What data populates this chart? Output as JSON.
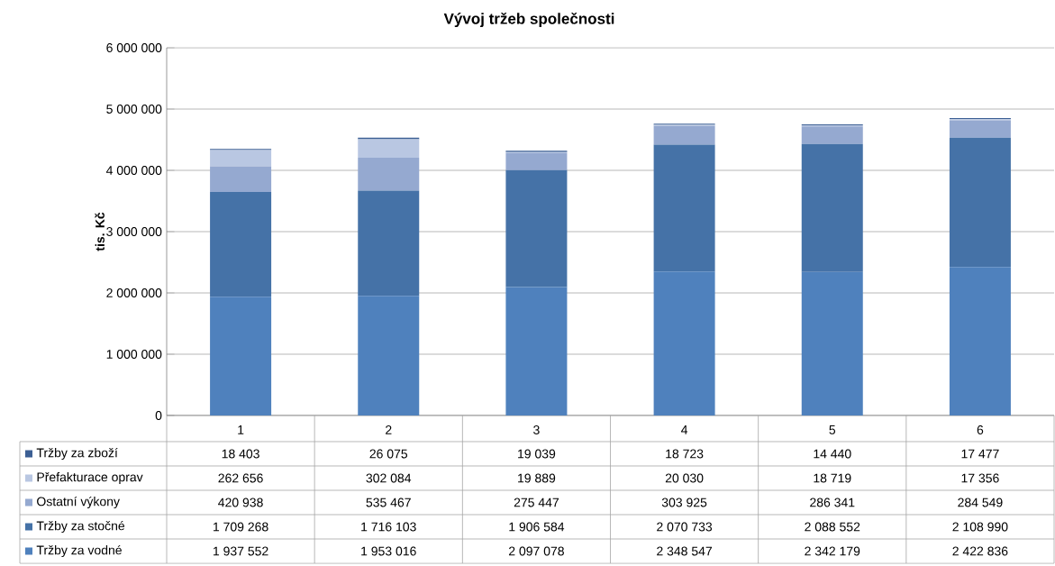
{
  "chart_data": {
    "type": "bar",
    "stacked": true,
    "title": "Vývoj tržeb společnosti",
    "ylabel": "tis. Kč",
    "categories": [
      "1",
      "2",
      "3",
      "4",
      "5",
      "6"
    ],
    "ylim": [
      0,
      6000000
    ],
    "yticks": [
      {
        "value": 0,
        "label": "0"
      },
      {
        "value": 1000000,
        "label": "1 000 000"
      },
      {
        "value": 2000000,
        "label": "2 000 000"
      },
      {
        "value": 3000000,
        "label": "3 000 000"
      },
      {
        "value": 4000000,
        "label": "4 000 000"
      },
      {
        "value": 5000000,
        "label": "5 000 000"
      },
      {
        "value": 6000000,
        "label": "6 000 000"
      }
    ],
    "grid": "y",
    "legend": "bottom",
    "series": [
      {
        "name": "Tržby za vodné",
        "color": "#4f81bd",
        "values": [
          1937552,
          1953016,
          2097078,
          2348547,
          2342179,
          2422836
        ],
        "value_labels": [
          "1 937 552",
          "1 953 016",
          "2 097 078",
          "2 348 547",
          "2 342 179",
          "2 422 836"
        ]
      },
      {
        "name": "Tržby za stočné",
        "color": "#4572a7",
        "values": [
          1709268,
          1716103,
          1906584,
          2070733,
          2088552,
          2108990
        ],
        "value_labels": [
          "1 709 268",
          "1 716 103",
          "1 906 584",
          "2 070 733",
          "2 088 552",
          "2 108 990"
        ]
      },
      {
        "name": "Ostatní výkony",
        "color": "#95a9d0",
        "values": [
          420938,
          535467,
          275447,
          303925,
          286341,
          284549
        ],
        "value_labels": [
          "420 938",
          "535 467",
          "275 447",
          "303 925",
          "286 341",
          "284 549"
        ]
      },
      {
        "name": "Přefakturace oprav",
        "color": "#b9c7e2",
        "values": [
          262656,
          302084,
          19889,
          20030,
          18719,
          17356
        ],
        "value_labels": [
          "262 656",
          "302 084",
          "19 889",
          "20 030",
          "18 719",
          "17 356"
        ]
      },
      {
        "name": "Tržby za zboží",
        "color": "#3c5f94",
        "values": [
          18403,
          26075,
          19039,
          18723,
          14440,
          17477
        ],
        "value_labels": [
          "18 403",
          "26 075",
          "19 039",
          "18 723",
          "14 440",
          "17 477"
        ]
      }
    ]
  }
}
